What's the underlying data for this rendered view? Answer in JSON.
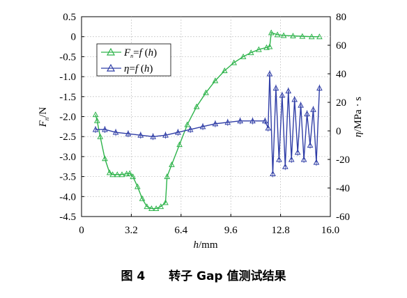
{
  "caption": {
    "number": "图 4",
    "text": "转子 Gap 值测试结果"
  },
  "chart_data": {
    "type": "line",
    "xlabel": "h/mm",
    "ylabel_left": "F_n/N",
    "ylabel_right": "η/MPa·s",
    "xlim": [
      0,
      16
    ],
    "ylim_left": [
      -4.5,
      0.5
    ],
    "ylim_right": [
      -60,
      80
    ],
    "x_ticks": [
      "0",
      "3.2",
      "6.4",
      "9.6",
      "12.8",
      "16.0"
    ],
    "y_left_ticks": [
      "0.5",
      "0",
      "-0.5",
      "-1.0",
      "-1.5",
      "-2.0",
      "-2.5",
      "-3.0",
      "-3.5",
      "-4.0",
      "-4.5"
    ],
    "y_right_ticks": [
      "80",
      "60",
      "40",
      "20",
      "0",
      "-20",
      "-40",
      "-60"
    ],
    "grid": true,
    "legend_position": "upper-left",
    "series": [
      {
        "name": "Fn=f (h)",
        "axis": "left",
        "color": "#2db34a",
        "marker": "triangle",
        "x": [
          0.9,
          1.0,
          1.2,
          1.5,
          1.8,
          2.0,
          2.3,
          2.6,
          2.9,
          3.1,
          3.3,
          3.6,
          3.9,
          4.2,
          4.5,
          4.8,
          5.1,
          5.4,
          5.5,
          5.8,
          6.3,
          6.8,
          7.4,
          8.0,
          8.6,
          9.2,
          9.8,
          10.4,
          10.9,
          11.4,
          11.9,
          12.1,
          12.2,
          12.6,
          13.0,
          13.6,
          14.2,
          14.8,
          15.3
        ],
        "values": [
          -1.95,
          -2.1,
          -2.5,
          -3.05,
          -3.4,
          -3.45,
          -3.45,
          -3.45,
          -3.43,
          -3.42,
          -3.5,
          -3.75,
          -4.05,
          -4.25,
          -4.3,
          -4.3,
          -4.25,
          -4.15,
          -3.5,
          -3.2,
          -2.7,
          -2.2,
          -1.75,
          -1.4,
          -1.1,
          -0.85,
          -0.65,
          -0.5,
          -0.4,
          -0.32,
          -0.27,
          -0.25,
          0.1,
          0.05,
          0.03,
          0.02,
          0.01,
          0.0,
          0.0
        ]
      },
      {
        "name": "η=f (h)",
        "axis": "right",
        "color": "#2f3da6",
        "marker": "triangle",
        "x": [
          0.9,
          1.5,
          2.2,
          3.0,
          3.8,
          4.6,
          5.4,
          6.2,
          7.0,
          7.8,
          8.6,
          9.4,
          10.2,
          11.0,
          11.8,
          12.0,
          12.1,
          12.3,
          12.5,
          12.7,
          12.9,
          13.1,
          13.3,
          13.5,
          13.7,
          13.9,
          14.1,
          14.3,
          14.5,
          14.7,
          14.9,
          15.1,
          15.3
        ],
        "values": [
          1,
          1,
          -1,
          -2,
          -3,
          -4,
          -3,
          -1,
          1,
          3,
          5,
          6,
          7,
          7,
          7,
          2,
          40,
          -30,
          30,
          -20,
          25,
          -25,
          28,
          -20,
          22,
          -15,
          18,
          -20,
          12,
          -10,
          15,
          -22,
          30
        ]
      }
    ]
  }
}
